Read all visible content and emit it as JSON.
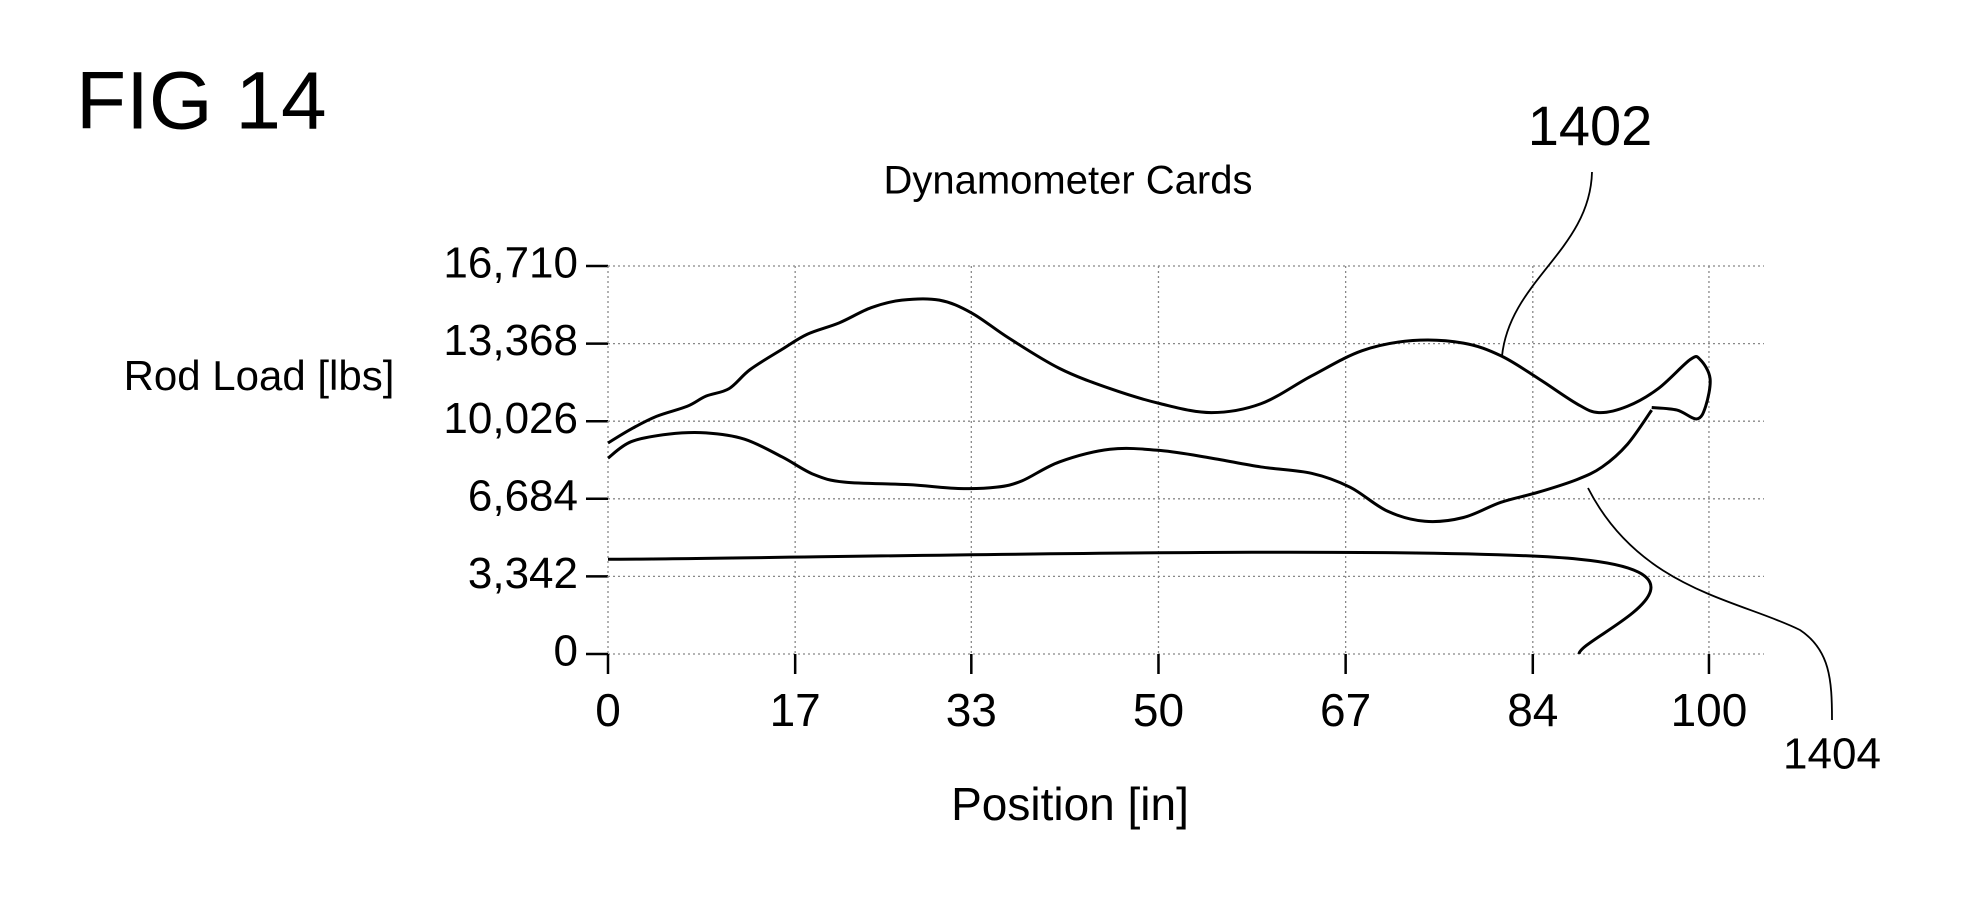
{
  "chart_data": {
    "type": "line",
    "figure_label": "FIG 14",
    "title": "Dynamometer Cards",
    "x_label": "Position [in]",
    "y_label": "Rod Load [lbs]",
    "xlim": [
      0,
      105
    ],
    "xticks": [
      0,
      17,
      33,
      50,
      67,
      84,
      100
    ],
    "ylim": [
      0,
      16710
    ],
    "yticks": [
      0,
      {
        "value": 3342,
        "label": "3,342"
      },
      {
        "value": 6684,
        "label": "6,684"
      },
      {
        "value": 10026,
        "label": "10,026"
      },
      {
        "value": 13368,
        "label": "13,368"
      },
      {
        "value": 16710,
        "label": "16,710"
      }
    ],
    "grid": true,
    "series": [
      {
        "name": "1402",
        "color": "#000000",
        "x": [
          0,
          2.1,
          4.4,
          7.2,
          8.9,
          11.0,
          12.9,
          15.8,
          18.1,
          21.0,
          23.9,
          26.7,
          30.1,
          33.0,
          36.4,
          41.0,
          45.6,
          50.2,
          54.8,
          59.3,
          63.9,
          68.5,
          73.1,
          77.7,
          81.1,
          84.5,
          88.0,
          90.0,
          92.6,
          95.4,
          98.3,
          99.2,
          100.1,
          99.7,
          98.9,
          97.1,
          94.8
        ],
        "values": [
          9090,
          9689,
          10233,
          10668,
          11104,
          11430,
          12247,
          13118,
          13771,
          14261,
          14914,
          15240,
          15240,
          14696,
          13608,
          12301,
          11430,
          10777,
          10396,
          10777,
          11975,
          13063,
          13499,
          13390,
          12845,
          11866,
          10777,
          10396,
          10668,
          11430,
          12682,
          12682,
          11866,
          10668,
          10124,
          10505,
          10614
        ]
      },
      {
        "name": "1404",
        "color": "#000000",
        "x": [
          0,
          2.1,
          5.5,
          8.9,
          12.4,
          15.8,
          18.7,
          21.5,
          27.3,
          31.8,
          35.3,
          37.6,
          41.0,
          45.6,
          50.2,
          54.8,
          59.3,
          63.9,
          67.4,
          70.8,
          74.2,
          77.7,
          81.1,
          84.5,
          88.0,
          90.3,
          92.6,
          94.8
        ],
        "values": [
          8437,
          9144,
          9471,
          9525,
          9253,
          8491,
          7729,
          7402,
          7294,
          7130,
          7185,
          7457,
          8273,
          8818,
          8763,
          8437,
          8056,
          7783,
          7185,
          6151,
          5715,
          5878,
          6532,
          6967,
          7511,
          8056,
          9035,
          10505
        ]
      },
      {
        "color": "#000000",
        "x": [
          0,
          88.2,
          88.2
        ],
        "values": [
          4082,
          4082,
          0
        ]
      }
    ]
  }
}
